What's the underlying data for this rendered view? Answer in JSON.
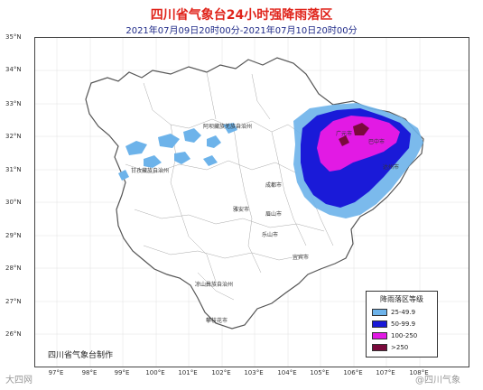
{
  "title": "四川省气象台24小时强降雨落区",
  "subtitle": "2021年07月09日20时00分-2021年07月10日20时00分",
  "agency": "四川省气象台制作",
  "lat_labels": [
    "35°N",
    "34°N",
    "33°N",
    "32°N",
    "31°N",
    "30°N",
    "29°N",
    "28°N",
    "27°N",
    "26°N"
  ],
  "lon_labels": [
    "97°E",
    "98°E",
    "99°E",
    "100°E",
    "101°E",
    "102°E",
    "103°E",
    "104°E",
    "105°E",
    "106°E",
    "107°E",
    "108°E"
  ],
  "legend": {
    "title": "降雨落区等级",
    "items": [
      {
        "label": "25-49.9",
        "color": "#6db3ea"
      },
      {
        "label": "50-99.9",
        "color": "#1a1ad8"
      },
      {
        "label": "100-250",
        "color": "#e21ae4"
      },
      {
        "label": ">250",
        "color": "#7a0a3c"
      }
    ]
  },
  "cities": [
    {
      "name": "阿坝藏族羌族自治州"
    },
    {
      "name": "甘孜藏族自治州"
    },
    {
      "name": "广元市"
    },
    {
      "name": "巴中市"
    },
    {
      "name": "达州市"
    },
    {
      "name": "成都市"
    },
    {
      "name": "雅安市"
    },
    {
      "name": "眉山市"
    },
    {
      "name": "乐山市"
    },
    {
      "name": "宜宾市"
    },
    {
      "name": "凉山彝族自治州"
    },
    {
      "name": "攀枝花市"
    }
  ],
  "watermark_left": "大四网",
  "watermark_right": "@四川气象"
}
